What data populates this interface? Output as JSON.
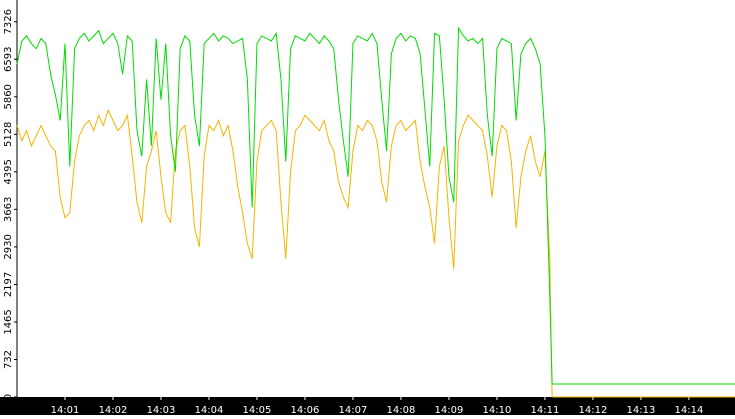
{
  "chart_data": {
    "type": "line",
    "x": [
      0,
      0.1,
      0.2,
      0.3,
      0.4,
      0.5,
      0.6,
      0.7,
      0.8,
      0.9,
      1,
      1.1,
      1.2,
      1.3,
      1.4,
      1.5,
      1.6,
      1.7,
      1.8,
      1.9,
      2,
      2.1,
      2.2,
      2.3,
      2.4,
      2.5,
      2.6,
      2.7,
      2.8,
      2.9,
      3,
      3.1,
      3.2,
      3.3,
      3.4,
      3.5,
      3.6,
      3.7,
      3.8,
      3.9,
      4,
      4.1,
      4.2,
      4.3,
      4.4,
      4.5,
      4.6,
      4.7,
      4.8,
      4.9,
      5,
      5.1,
      5.2,
      5.3,
      5.4,
      5.5,
      5.6,
      5.7,
      5.8,
      5.9,
      6,
      6.1,
      6.2,
      6.3,
      6.4,
      6.5,
      6.6,
      6.7,
      6.8,
      6.9,
      7,
      7.1,
      7.2,
      7.3,
      7.4,
      7.5,
      7.6,
      7.7,
      7.8,
      7.9,
      8,
      8.1,
      8.2,
      8.3,
      8.4,
      8.5,
      8.6,
      8.7,
      8.8,
      8.9,
      9,
      9.1,
      9.2,
      9.3,
      9.4,
      9.5,
      9.6,
      9.7,
      9.8,
      9.9,
      10,
      10.1,
      10.2,
      10.3,
      10.4,
      10.5,
      10.6,
      10.7,
      10.8,
      10.9,
      11,
      11.1,
      11.15,
      14.96
    ],
    "series": [
      {
        "color": "#00dd00",
        "values": [
          6500,
          6950,
          7050,
          6900,
          6800,
          7000,
          6900,
          6300,
          5900,
          5400,
          6900,
          4500,
          6800,
          7000,
          7100,
          6950,
          7050,
          7150,
          6900,
          7000,
          7100,
          6900,
          6300,
          7050,
          6950,
          5200,
          4700,
          6200,
          4900,
          7000,
          5800,
          6900,
          5100,
          4400,
          6800,
          7050,
          6950,
          5500,
          4900,
          6900,
          7000,
          7100,
          6950,
          7050,
          7000,
          6900,
          6950,
          7000,
          6200,
          3700,
          6900,
          7050,
          7000,
          6950,
          7100,
          6200,
          4600,
          6800,
          7050,
          7000,
          6950,
          7100,
          7000,
          6900,
          7050,
          6950,
          6800,
          5800,
          5000,
          4300,
          6900,
          7050,
          7000,
          6950,
          7100,
          6900,
          5800,
          4800,
          6700,
          7000,
          7100,
          6950,
          7050,
          7000,
          6700,
          5600,
          4500,
          7100,
          7050,
          5800,
          4300,
          3800,
          7200,
          7050,
          6950,
          7000,
          6900,
          7000,
          5500,
          4700,
          6800,
          7000,
          6950,
          6900,
          5400,
          6700,
          6900,
          7000,
          6800,
          6500,
          5100,
          2000,
          254,
          254
        ]
      },
      {
        "color": "#f5b400",
        "values": [
          5300,
          5000,
          5200,
          4900,
          5100,
          5300,
          5100,
          4900,
          4800,
          3900,
          3500,
          3600,
          4600,
          5100,
          5300,
          5400,
          5200,
          5500,
          5300,
          5600,
          5400,
          5200,
          5300,
          5500,
          4700,
          3800,
          3400,
          4500,
          4800,
          5200,
          4300,
          3600,
          3400,
          4800,
          5200,
          5300,
          4500,
          3300,
          2930,
          4700,
          5300,
          5200,
          5400,
          5100,
          5300,
          4800,
          4100,
          3600,
          3000,
          2700,
          4600,
          5200,
          5300,
          5400,
          5200,
          3800,
          2700,
          4400,
          5200,
          5300,
          5500,
          5400,
          5300,
          5200,
          5400,
          5000,
          4800,
          4200,
          3900,
          3700,
          4800,
          5300,
          5200,
          5400,
          5300,
          5000,
          4200,
          3800,
          4900,
          5300,
          5400,
          5200,
          5300,
          5400,
          4600,
          4100,
          3700,
          3000,
          4500,
          4900,
          3500,
          2500,
          5000,
          5300,
          5500,
          5400,
          5300,
          5200,
          4700,
          3900,
          4900,
          5300,
          5200,
          4600,
          3300,
          4300,
          4800,
          5100,
          4600,
          4300,
          4800,
          2700,
          0,
          0
        ]
      }
    ],
    "xlim": [
      0,
      14.96
    ],
    "xticks": [
      {
        "value": 1,
        "label": "14:01"
      },
      {
        "value": 2,
        "label": "14:02"
      },
      {
        "value": 3,
        "label": "14:03"
      },
      {
        "value": 4,
        "label": "14:04"
      },
      {
        "value": 5,
        "label": "14:05"
      },
      {
        "value": 6,
        "label": "14:06"
      },
      {
        "value": 7,
        "label": "14:07"
      },
      {
        "value": 8,
        "label": "14:08"
      },
      {
        "value": 9,
        "label": "14:09"
      },
      {
        "value": 10,
        "label": "14:10"
      },
      {
        "value": 11,
        "label": "14:11"
      },
      {
        "value": 12,
        "label": "14:12"
      },
      {
        "value": 13,
        "label": "14:13"
      },
      {
        "value": 14,
        "label": "14:14"
      }
    ],
    "ylim": [
      0,
      7750
    ],
    "yticks": [
      0,
      732,
      1465,
      2197,
      2930,
      3663,
      4395,
      5128,
      5860,
      6593,
      7326
    ],
    "grid": false
  }
}
